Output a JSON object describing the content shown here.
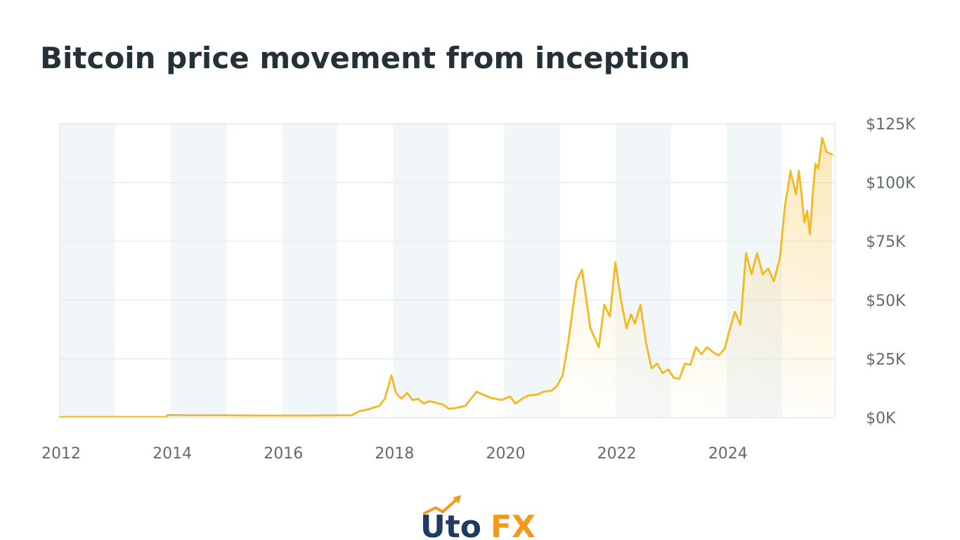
{
  "title": "Bitcoin price movement from inception",
  "logo": {
    "text_part1": "Uto",
    "text_part2": "FX"
  },
  "colors": {
    "line": "#F5B820",
    "band": "#F1F6F9",
    "grid": "#E4EAEE",
    "title": "#243238",
    "tick": "#5F6B70",
    "logo_navy": "#1F3A63",
    "logo_orange": "#F39A1E"
  },
  "chart_data": {
    "type": "area",
    "title": "Bitcoin price movement from inception",
    "xlabel": "",
    "ylabel": "",
    "x_ticks": [
      "2012",
      "2014",
      "2016",
      "2018",
      "2020",
      "2022",
      "2024"
    ],
    "y_ticks": [
      "$0K",
      "$25K",
      "$50K",
      "$75K",
      "$100K",
      "$125K"
    ],
    "xlim": [
      2012.0,
      2025.95
    ],
    "ylim": [
      0,
      125000
    ],
    "grid": true,
    "alternating_year_bands": true,
    "y_axis_side": "right",
    "legend": "none",
    "series": [
      {
        "x": [
          2012.0,
          2012.5,
          2013.0,
          2013.5,
          2013.9,
          2013.95,
          2014.5,
          2015.0,
          2015.5,
          2016.0,
          2016.5,
          2017.0,
          2017.25,
          2017.4,
          2017.55,
          2017.65,
          2017.75,
          2017.85,
          2017.97,
          2018.05,
          2018.15,
          2018.25,
          2018.35,
          2018.45,
          2018.55,
          2018.65,
          2018.75,
          2018.9,
          2019.0,
          2019.1,
          2019.3,
          2019.5,
          2019.75,
          2019.95,
          2020.1,
          2020.2,
          2020.35,
          2020.45,
          2020.6,
          2020.7,
          2020.85,
          2020.95,
          2021.05,
          2021.15,
          2021.3,
          2021.4,
          2021.55,
          2021.7,
          2021.8,
          2021.9,
          2022.0,
          2022.1,
          2022.2,
          2022.28,
          2022.35,
          2022.45,
          2022.55,
          2022.65,
          2022.75,
          2022.85,
          2022.95,
          2023.05,
          2023.15,
          2023.25,
          2023.35,
          2023.45,
          2023.55,
          2023.65,
          2023.75,
          2023.85,
          2023.9,
          2023.97,
          2024.05,
          2024.15,
          2024.25,
          2024.35,
          2024.45,
          2024.55,
          2024.65,
          2024.75,
          2024.85,
          2024.95,
          2024.97,
          2025.05,
          2025.1,
          2025.15,
          2025.25,
          2025.3,
          2025.35,
          2025.4,
          2025.45,
          2025.5,
          2025.55,
          2025.6,
          2025.65,
          2025.72,
          2025.8,
          2025.9
        ],
        "y": [
          300,
          300,
          300,
          300,
          300,
          1100,
          1000,
          1000,
          900,
          900,
          900,
          1000,
          1000,
          2800,
          3500,
          4300,
          5000,
          8000,
          18000,
          10500,
          8000,
          10500,
          7500,
          8000,
          6000,
          7000,
          6500,
          5500,
          3800,
          4000,
          5000,
          11000,
          8500,
          7500,
          9000,
          6000,
          8500,
          9500,
          9800,
          11000,
          11500,
          13500,
          18000,
          32000,
          58000,
          63000,
          38000,
          30000,
          48000,
          43000,
          66000,
          50000,
          38000,
          44000,
          40000,
          48000,
          32000,
          21000,
          23000,
          19000,
          20500,
          17000,
          16500,
          23000,
          22500,
          30000,
          27000,
          30000,
          28000,
          26500,
          27500,
          29500,
          37000,
          45000,
          39500,
          70000,
          61000,
          70000,
          61000,
          63500,
          58000,
          67000,
          70000,
          90000,
          97000,
          105000,
          95000,
          105000,
          95000,
          83000,
          88000,
          78000,
          95000,
          108000,
          106000,
          119000,
          113000,
          112000
        ]
      }
    ]
  }
}
